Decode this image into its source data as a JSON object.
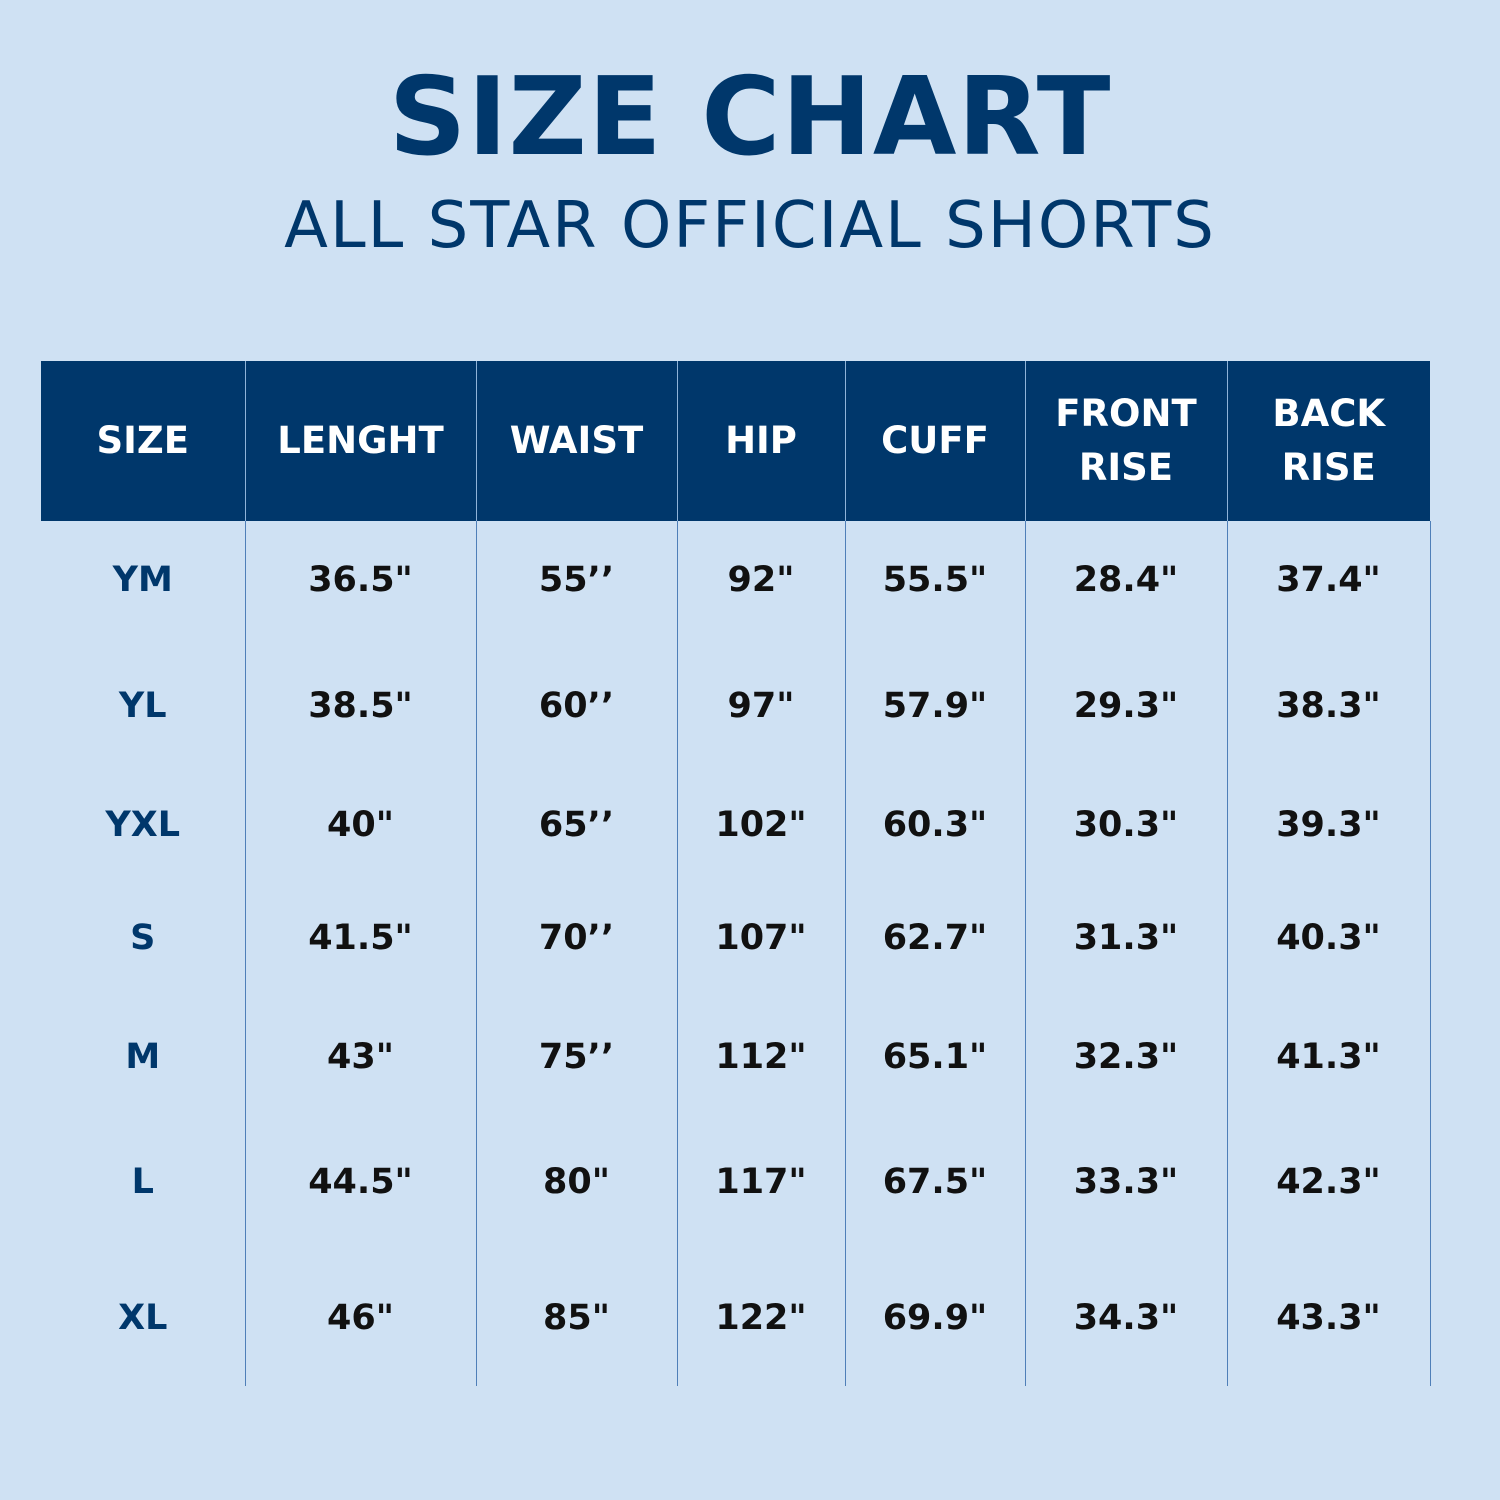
{
  "title": "SIZE CHART",
  "subtitle": "ALL STAR OFFICIAL SHORTS",
  "table": {
    "headers": [
      "SIZE",
      "LENGHT",
      "WAIST",
      "HIP",
      "CUFF",
      "FRONT\nRISE",
      "BACK\nRISE"
    ],
    "rows": [
      [
        "YM",
        "36.5\"",
        "55’’",
        "92\"",
        "55.5\"",
        "28.4\"",
        "37.4\""
      ],
      [
        "YL",
        "38.5\"",
        "60’’",
        "97\"",
        "57.9\"",
        "29.3\"",
        "38.3\""
      ],
      [
        "YXL",
        "40\"",
        "65’’",
        "102\"",
        "60.3\"",
        "30.3\"",
        "39.3\""
      ],
      [
        "S",
        "41.5\"",
        "70’’",
        "107\"",
        "62.7\"",
        "31.3\"",
        "40.3\""
      ],
      [
        "M",
        "43\"",
        "75’’",
        "112\"",
        "65.1\"",
        "32.3\"",
        "41.3\""
      ],
      [
        "L",
        "44.5\"",
        "80\"",
        "117\"",
        "67.5\"",
        "33.3\"",
        "42.3\""
      ],
      [
        "XL",
        "46\"",
        "85\"",
        "122\"",
        "69.9\"",
        "34.3\"",
        "43.3\""
      ]
    ]
  },
  "colors": {
    "background": "#cfe1f3",
    "brand_navy": "#00376b",
    "cell_text": "#111111"
  }
}
